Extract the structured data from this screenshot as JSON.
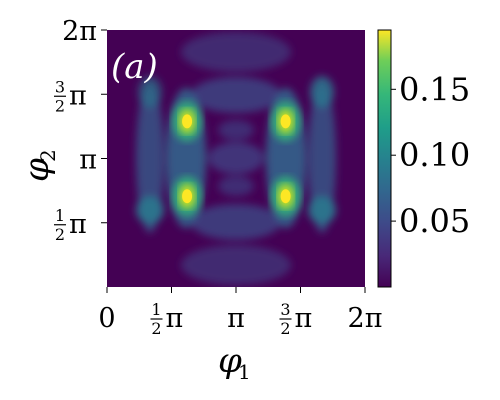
{
  "chart_data": {
    "type": "heatmap",
    "panel_label": "(a)",
    "xlabel": "φ1",
    "ylabel": "φ2",
    "xlim": [
      0,
      6.2832
    ],
    "ylim": [
      0,
      6.2832
    ],
    "x_ticks": [
      {
        "value": 0,
        "label": "0"
      },
      {
        "value": 1.5708,
        "label": "½π"
      },
      {
        "value": 3.1416,
        "label": "π"
      },
      {
        "value": 4.7124,
        "label": "3/2π"
      },
      {
        "value": 6.2832,
        "label": "2π"
      }
    ],
    "y_ticks": [
      {
        "value": 1.5708,
        "label": "½π"
      },
      {
        "value": 3.1416,
        "label": "π"
      },
      {
        "value": 4.7124,
        "label": "3/2π"
      },
      {
        "value": 6.2832,
        "label": "2π"
      }
    ],
    "colormap": "viridis",
    "color_range": [
      0,
      0.195
    ],
    "colorbar_ticks": [
      {
        "value": 0.05,
        "label": "0.05"
      },
      {
        "value": 0.1,
        "label": "0.10"
      },
      {
        "value": 0.15,
        "label": "0.15"
      }
    ],
    "peaks": [
      {
        "x": 1.95,
        "y": 4.05,
        "value": 0.185
      },
      {
        "x": 4.35,
        "y": 4.05,
        "value": 0.185
      },
      {
        "x": 1.95,
        "y": 2.22,
        "value": 0.19
      },
      {
        "x": 4.35,
        "y": 2.22,
        "value": 0.19
      }
    ]
  }
}
